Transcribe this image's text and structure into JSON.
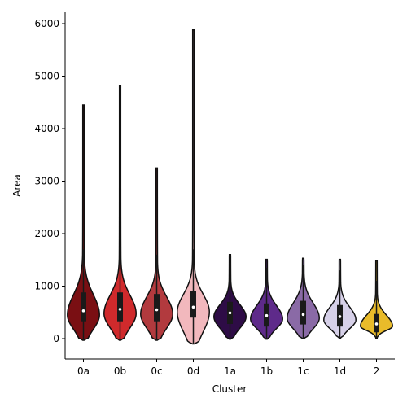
{
  "chart_data": {
    "type": "violin",
    "xlabel": "Cluster",
    "ylabel": "Area",
    "ylim": [
      -400,
      6200
    ],
    "yticks": [
      0,
      1000,
      2000,
      3000,
      4000,
      5000,
      6000
    ],
    "grid": false,
    "categories": [
      "0a",
      "0b",
      "0c",
      "0d",
      "1a",
      "1b",
      "1c",
      "1d",
      "2"
    ],
    "colors": [
      "#7a0f13",
      "#d02a2c",
      "#b23a3e",
      "#f2b8bd",
      "#2e0c46",
      "#5e2a8a",
      "#8a6aa6",
      "#d6d0e8",
      "#e9bb2a"
    ],
    "series": [
      {
        "category": "0a",
        "min": -30,
        "q1": 330,
        "median": 530,
        "q3": 880,
        "max": 4450,
        "whisker_low": -30,
        "whisker_high": 1700
      },
      {
        "category": "0b",
        "min": -30,
        "q1": 330,
        "median": 560,
        "q3": 880,
        "max": 4820,
        "whisker_low": -30,
        "whisker_high": 1750
      },
      {
        "category": "0c",
        "min": -30,
        "q1": 330,
        "median": 550,
        "q3": 850,
        "max": 3250,
        "whisker_low": -30,
        "whisker_high": 1600
      },
      {
        "category": "0d",
        "min": -100,
        "q1": 400,
        "median": 600,
        "q3": 900,
        "max": 5880,
        "whisker_low": -100,
        "whisker_high": 1700
      },
      {
        "category": "1a",
        "min": -10,
        "q1": 280,
        "median": 490,
        "q3": 700,
        "max": 1600,
        "whisker_low": -10,
        "whisker_high": 1450
      },
      {
        "category": "1b",
        "min": -10,
        "q1": 230,
        "median": 440,
        "q3": 670,
        "max": 1510,
        "whisker_low": -10,
        "whisker_high": 1350
      },
      {
        "category": "1c",
        "min": 0,
        "q1": 270,
        "median": 460,
        "q3": 720,
        "max": 1530,
        "whisker_low": 0,
        "whisker_high": 1400
      },
      {
        "category": "1d",
        "min": 10,
        "q1": 230,
        "median": 420,
        "q3": 640,
        "max": 1510,
        "whisker_low": 10,
        "whisker_high": 1300
      },
      {
        "category": "2",
        "min": 10,
        "q1": 120,
        "median": 280,
        "q3": 470,
        "max": 1490,
        "whisker_low": 10,
        "whisker_high": 1100
      }
    ]
  }
}
